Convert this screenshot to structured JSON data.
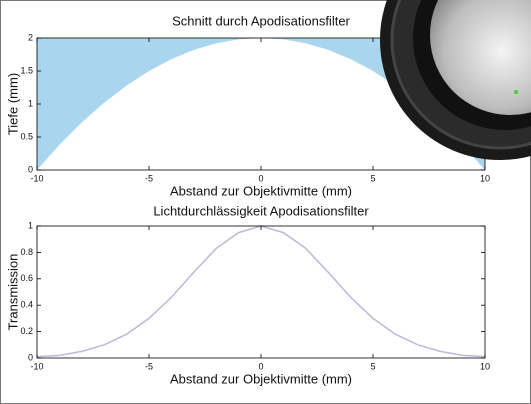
{
  "chart_data": [
    {
      "type": "area",
      "title": "Schnitt durch Apodisationsfilter",
      "x_label": "Abstand zur Objektivmitte (mm)",
      "y_label": "Tiefe (mm)",
      "x": [
        -10,
        -9,
        -8,
        -7,
        -6,
        -5,
        -4,
        -3,
        -2,
        -1,
        0,
        1,
        2,
        3,
        4,
        5,
        6,
        7,
        8,
        9,
        10
      ],
      "values": [
        0,
        0.38,
        0.72,
        1.02,
        1.28,
        1.5,
        1.68,
        1.82,
        1.92,
        1.98,
        2,
        1.98,
        1.92,
        1.82,
        1.68,
        1.5,
        1.28,
        1.02,
        0.72,
        0.38,
        0
      ],
      "color": "#a9d5ee",
      "xlim": [
        -10,
        10
      ],
      "ylim": [
        0,
        2
      ],
      "xticks": [
        -10,
        -5,
        0,
        5,
        10
      ],
      "yticks": [
        0,
        0.5,
        1,
        1.5,
        2
      ]
    },
    {
      "type": "line",
      "title": "Lichtdurchlässigkeit Apodisationsfilter",
      "x_label": "Abstand zur Objektivmitte (mm)",
      "y_label": "Transmission",
      "x": [
        -10,
        -9,
        -8,
        -7,
        -6,
        -5,
        -4,
        -3,
        -2,
        -1,
        0,
        1,
        2,
        3,
        4,
        5,
        6,
        7,
        8,
        9,
        10
      ],
      "values": [
        0.01,
        0.02,
        0.05,
        0.1,
        0.18,
        0.3,
        0.46,
        0.65,
        0.83,
        0.95,
        1,
        0.95,
        0.83,
        0.65,
        0.46,
        0.3,
        0.18,
        0.1,
        0.05,
        0.02,
        0.01
      ],
      "color": "#b9b9dc",
      "xlim": [
        -10,
        10
      ],
      "ylim": [
        0,
        1
      ],
      "xticks": [
        -10,
        -5,
        0,
        5,
        10
      ],
      "yticks": [
        0,
        0.2,
        0.4,
        0.6,
        0.8,
        1
      ]
    }
  ]
}
